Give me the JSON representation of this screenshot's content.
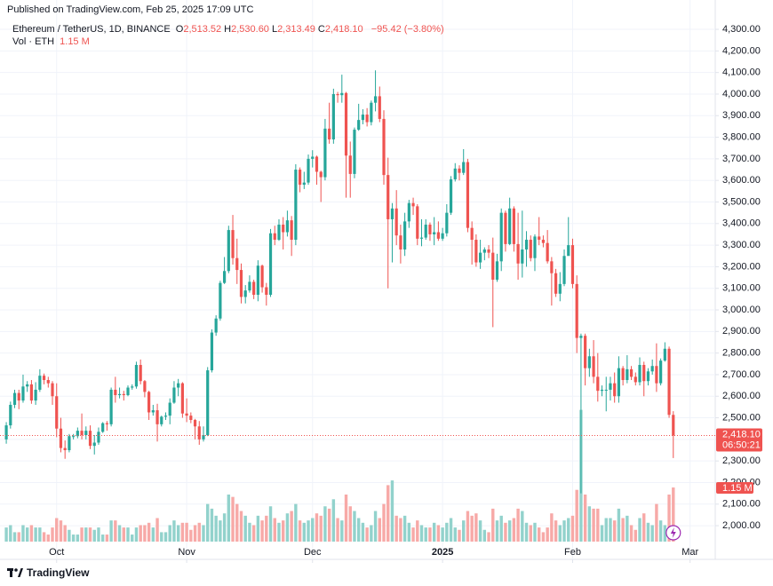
{
  "published": "Published on TradingView.com, Feb 25, 2025 17:09 UTC",
  "brand": "TradingView",
  "chart_data": {
    "type": "candlestick",
    "symbol": "Ethereum / TetherUS, 1D, BINANCE",
    "legend": [
      {
        "key": "O",
        "value": "2,513.52"
      },
      {
        "key": "H",
        "value": "2,530.60"
      },
      {
        "key": "L",
        "value": "2,313.49"
      },
      {
        "key": "C",
        "value": "2,418.10"
      }
    ],
    "change": "−95.42 (−3.80%)",
    "volume_title": "Vol · ETH",
    "volume_label": "1.15 M",
    "price_label": "2,418.10",
    "countdown": "06:50:21",
    "up_color": "#26a69a",
    "down_color": "#ef5350",
    "volume_up_color": "#92d2cc",
    "volume_down_color": "#f7a9a7",
    "grid": true,
    "xlim": [
      -1.5,
      169
    ],
    "xticks": [
      {
        "value": 12,
        "label": "Oct"
      },
      {
        "value": 43,
        "label": "Nov"
      },
      {
        "value": 73,
        "label": "Dec"
      },
      {
        "value": 104,
        "label": "2025"
      },
      {
        "value": 135,
        "label": "Feb"
      },
      {
        "value": 163,
        "label": "Mar"
      }
    ],
    "ylim": [
      1844,
      4436
    ],
    "yticks": [
      {
        "value": 2000,
        "label": "2,000.00"
      },
      {
        "value": 2100,
        "label": "2,100.00"
      },
      {
        "value": 2200,
        "label": "2,200.00"
      },
      {
        "value": 2300,
        "label": "2,300.00"
      },
      {
        "value": 2400,
        "label": "2,400.00"
      },
      {
        "value": 2500,
        "label": "2,500.00"
      },
      {
        "value": 2600,
        "label": "2,600.00"
      },
      {
        "value": 2700,
        "label": "2,700.00"
      },
      {
        "value": 2800,
        "label": "2,800.00"
      },
      {
        "value": 2900,
        "label": "2,900.00"
      },
      {
        "value": 3000,
        "label": "3,000.00"
      },
      {
        "value": 3100,
        "label": "3,100.00"
      },
      {
        "value": 3200,
        "label": "3,200.00"
      },
      {
        "value": 3300,
        "label": "3,300.00"
      },
      {
        "value": 3400,
        "label": "3,400.00"
      },
      {
        "value": 3500,
        "label": "3,500.00"
      },
      {
        "value": 3600,
        "label": "3,600.00"
      },
      {
        "value": 3700,
        "label": "3,700.00"
      },
      {
        "value": 3800,
        "label": "3,800.00"
      },
      {
        "value": 3900,
        "label": "3,900.00"
      },
      {
        "value": 4000,
        "label": "4,000.00"
      },
      {
        "value": 4100,
        "label": "4,100.00"
      },
      {
        "value": 4200,
        "label": "4,200.00"
      },
      {
        "value": 4300,
        "label": "4,300.00"
      }
    ],
    "open": [
      2400,
      2465,
      2560,
      2615,
      2580,
      2645,
      2655,
      2580,
      2630,
      2695,
      2675,
      2660,
      2600,
      2450,
      2360,
      2350,
      2415,
      2415,
      2440,
      2420,
      2440,
      2370,
      2385,
      2435,
      2475,
      2470,
      2630,
      2605,
      2610,
      2605,
      2640,
      2645,
      2745,
      2670,
      2620,
      2525,
      2535,
      2470,
      2505,
      2510,
      2570,
      2640,
      2660,
      2520,
      2510,
      2490,
      2460,
      2400,
      2420,
      2720,
      2895,
      2960,
      3125,
      3180,
      3370,
      3240,
      3185,
      3060,
      3090,
      3130,
      3070,
      3205,
      3105,
      3070,
      3355,
      3325,
      3395,
      3360,
      3415,
      3325,
      3650,
      3580,
      3590,
      3700,
      3710,
      3640,
      3615,
      3840,
      3790,
      4000,
      3995,
      4005,
      3715,
      3630,
      3835,
      3880,
      3905,
      3870,
      3960,
      3990,
      3885,
      3625,
      3420,
      3470,
      3345,
      3280,
      3410,
      3495,
      3480,
      3330,
      3335,
      3395,
      3350,
      3360,
      3330,
      3355,
      3450,
      3605,
      3655,
      3635,
      3685,
      3380,
      3325,
      3220,
      3265,
      3280,
      3265,
      3140,
      3225,
      3450,
      3305,
      3470,
      3305,
      3215,
      3280,
      3325,
      3240,
      3340,
      3325,
      3310,
      3225,
      3170,
      3075,
      3120,
      3250,
      3300,
      3120,
      2870,
      2880,
      2730,
      2785,
      2690,
      2625,
      2630,
      2630,
      2660,
      2600,
      2730,
      2675,
      2725,
      2690,
      2665,
      2745,
      2670,
      2715,
      2740,
      2660,
      2765,
      2820,
      2513.52
    ],
    "high": [
      2480,
      2575,
      2630,
      2630,
      2700,
      2670,
      2675,
      2665,
      2725,
      2705,
      2690,
      2670,
      2660,
      2500,
      2395,
      2425,
      2425,
      2455,
      2520,
      2460,
      2465,
      2420,
      2455,
      2480,
      2485,
      2640,
      2690,
      2640,
      2625,
      2650,
      2655,
      2760,
      2770,
      2675,
      2625,
      2560,
      2565,
      2510,
      2525,
      2590,
      2670,
      2680,
      2665,
      2590,
      2525,
      2495,
      2485,
      2460,
      2735,
      2910,
      2975,
      3135,
      3245,
      3390,
      3440,
      3330,
      3215,
      3115,
      3160,
      3140,
      3230,
      3210,
      3125,
      3375,
      3390,
      3420,
      3430,
      3460,
      3435,
      3675,
      3660,
      3640,
      3720,
      3740,
      3715,
      3645,
      3885,
      3960,
      4025,
      4010,
      4090,
      4010,
      3780,
      3845,
      3955,
      3930,
      3935,
      3970,
      4110,
      4035,
      3925,
      3705,
      3495,
      3555,
      3395,
      3450,
      3510,
      3520,
      3490,
      3420,
      3420,
      3405,
      3430,
      3410,
      3380,
      3490,
      3620,
      3680,
      3670,
      3745,
      3700,
      3410,
      3350,
      3325,
      3290,
      3300,
      3335,
      3260,
      3470,
      3460,
      3520,
      3480,
      3450,
      3460,
      3365,
      3345,
      3350,
      3430,
      3345,
      3370,
      3245,
      3190,
      3175,
      3280,
      3430,
      3330,
      3160,
      2890,
      2890,
      2820,
      2860,
      2800,
      2650,
      2690,
      2690,
      2710,
      2785,
      2740,
      2790,
      2740,
      2710,
      2780,
      2760,
      2730,
      2770,
      2845,
      2775,
      2850,
      2830,
      2530.6
    ],
    "low": [
      2380,
      2450,
      2545,
      2540,
      2570,
      2620,
      2565,
      2560,
      2620,
      2655,
      2640,
      2560,
      2410,
      2340,
      2310,
      2340,
      2400,
      2405,
      2400,
      2400,
      2355,
      2330,
      2375,
      2430,
      2440,
      2460,
      2570,
      2590,
      2580,
      2600,
      2630,
      2635,
      2655,
      2595,
      2490,
      2510,
      2390,
      2460,
      2490,
      2470,
      2565,
      2600,
      2500,
      2480,
      2475,
      2400,
      2375,
      2390,
      2415,
      2710,
      2880,
      2950,
      3120,
      3170,
      3210,
      3120,
      3030,
      3030,
      3080,
      3050,
      3040,
      3080,
      3020,
      3060,
      3300,
      3320,
      3280,
      3340,
      3250,
      3300,
      3545,
      3560,
      3580,
      3660,
      3580,
      3500,
      3600,
      3770,
      3770,
      3960,
      3960,
      3520,
      3520,
      3610,
      3830,
      3860,
      3850,
      3855,
      3920,
      3870,
      3580,
      3100,
      3220,
      3300,
      3215,
      3250,
      3380,
      3440,
      3300,
      3295,
      3325,
      3320,
      3300,
      3320,
      3320,
      3340,
      3440,
      3595,
      3600,
      3625,
      3360,
      3210,
      3200,
      3190,
      3230,
      3240,
      2920,
      3130,
      3180,
      3270,
      3300,
      3270,
      3140,
      3150,
      3200,
      3225,
      3180,
      3300,
      3290,
      3215,
      3020,
      3060,
      3040,
      3110,
      3270,
      3100,
      2800,
      2150,
      2650,
      2690,
      2660,
      2575,
      2600,
      2530,
      2580,
      2570,
      2570,
      2650,
      2660,
      2675,
      2650,
      2650,
      2600,
      2650,
      2700,
      2620,
      2650,
      2760,
      2500,
      2313.49
    ],
    "close": [
      2465,
      2560,
      2615,
      2580,
      2645,
      2655,
      2580,
      2630,
      2695,
      2675,
      2660,
      2600,
      2450,
      2360,
      2350,
      2415,
      2415,
      2440,
      2420,
      2440,
      2370,
      2385,
      2435,
      2475,
      2470,
      2630,
      2605,
      2610,
      2605,
      2640,
      2645,
      2745,
      2670,
      2620,
      2525,
      2535,
      2470,
      2505,
      2510,
      2570,
      2640,
      2660,
      2520,
      2510,
      2490,
      2460,
      2400,
      2420,
      2720,
      2895,
      2960,
      3125,
      3180,
      3370,
      3240,
      3185,
      3060,
      3090,
      3130,
      3070,
      3205,
      3105,
      3070,
      3355,
      3325,
      3395,
      3360,
      3415,
      3325,
      3650,
      3580,
      3590,
      3700,
      3710,
      3640,
      3615,
      3840,
      3790,
      4000,
      3995,
      4005,
      3715,
      3630,
      3835,
      3880,
      3905,
      3870,
      3960,
      3990,
      3885,
      3625,
      3420,
      3470,
      3345,
      3280,
      3410,
      3495,
      3480,
      3330,
      3335,
      3395,
      3350,
      3360,
      3330,
      3355,
      3450,
      3605,
      3655,
      3635,
      3685,
      3380,
      3325,
      3220,
      3265,
      3280,
      3265,
      3140,
      3225,
      3450,
      3305,
      3470,
      3305,
      3215,
      3280,
      3325,
      3240,
      3340,
      3325,
      3310,
      3225,
      3170,
      3075,
      3120,
      3250,
      3300,
      3120,
      2870,
      2880,
      2730,
      2785,
      2690,
      2625,
      2630,
      2630,
      2660,
      2600,
      2730,
      2675,
      2725,
      2690,
      2665,
      2745,
      2670,
      2715,
      2740,
      2660,
      2765,
      2820,
      2513.52,
      2418.1
    ],
    "volume": [
      0.3,
      0.35,
      0.2,
      0.2,
      0.35,
      0.3,
      0.35,
      0.3,
      0.3,
      0.2,
      0.15,
      0.3,
      0.5,
      0.45,
      0.35,
      0.25,
      0.15,
      0.15,
      0.3,
      0.3,
      0.3,
      0.25,
      0.3,
      0.15,
      0.15,
      0.45,
      0.45,
      0.35,
      0.3,
      0.3,
      0.15,
      0.3,
      0.35,
      0.35,
      0.4,
      0.3,
      0.5,
      0.2,
      0.2,
      0.35,
      0.45,
      0.35,
      0.4,
      0.4,
      0.25,
      0.35,
      0.4,
      0.35,
      0.8,
      0.7,
      0.55,
      0.45,
      0.6,
      1.0,
      0.95,
      0.8,
      0.65,
      0.55,
      0.4,
      0.35,
      0.55,
      0.45,
      0.55,
      0.75,
      0.5,
      0.4,
      0.45,
      0.6,
      0.65,
      0.8,
      0.45,
      0.4,
      0.45,
      0.5,
      0.6,
      0.55,
      0.75,
      0.7,
      0.9,
      0.5,
      0.45,
      1.0,
      0.75,
      0.65,
      0.5,
      0.4,
      0.3,
      0.35,
      0.65,
      0.5,
      0.8,
      1.2,
      1.3,
      0.55,
      0.5,
      0.55,
      0.4,
      0.3,
      0.45,
      0.35,
      0.3,
      0.3,
      0.4,
      0.35,
      0.3,
      0.4,
      0.5,
      0.3,
      0.25,
      0.45,
      0.65,
      0.55,
      0.6,
      0.45,
      0.25,
      0.2,
      0.7,
      0.45,
      0.55,
      0.4,
      0.45,
      0.5,
      0.7,
      0.65,
      0.4,
      0.35,
      0.4,
      0.3,
      0.2,
      0.3,
      0.6,
      0.45,
      0.35,
      0.45,
      0.5,
      0.55,
      1.1,
      2.8,
      1.0,
      0.75,
      0.7,
      0.7,
      0.35,
      0.5,
      0.5,
      0.45,
      0.7,
      0.5,
      0.55,
      0.35,
      0.25,
      0.5,
      0.6,
      0.4,
      0.35,
      0.8,
      0.45,
      0.35,
      1.0,
      1.15
    ]
  }
}
